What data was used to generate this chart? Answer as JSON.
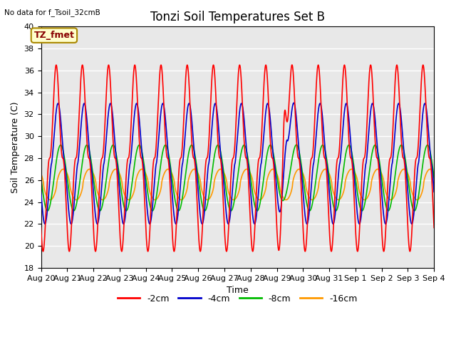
{
  "title": "Tonzi Soil Temperatures Set B",
  "xlabel": "Time",
  "ylabel": "Soil Temperature (C)",
  "ylim": [
    18,
    40
  ],
  "yticks": [
    18,
    20,
    22,
    24,
    26,
    28,
    30,
    32,
    34,
    36,
    38,
    40
  ],
  "bg_color": "#e8e8e8",
  "line_colors": [
    "#ff0000",
    "#0000cc",
    "#00bb00",
    "#ff9900"
  ],
  "line_lw": 1.2,
  "legend_labels": [
    "-2cm",
    "-4cm",
    "-8cm",
    "-16cm"
  ],
  "legend_colors": [
    "#ff0000",
    "#0000cc",
    "#00bb00",
    "#ff9900"
  ],
  "no_data_text": "No data for f_Tsoil_32cmB",
  "annotation_text": "TZ_fmet",
  "annotation_box_color": "#ffffcc",
  "annotation_edge_color": "#aa8800",
  "n_days": 15,
  "grid_color": "#ffffff",
  "title_fontsize": 12,
  "axis_fontsize": 9,
  "tick_fontsize": 8
}
